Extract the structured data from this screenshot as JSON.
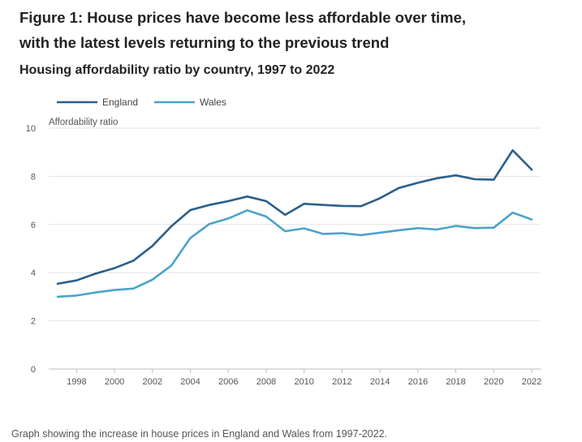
{
  "figure": {
    "title_line1": "Figure 1: House prices have become less affordable over time,",
    "title_line2": "with the latest levels returning to the previous trend",
    "caption": "Graph showing the increase in house prices in England and Wales from 1997-2022."
  },
  "colors": {
    "england": "#2a5f8a",
    "wales": "#4aa3c8",
    "grid": "#e3e3e3",
    "axis": "#bdbdbd"
  },
  "chart_data": {
    "type": "line",
    "title": "Housing affordability ratio by country, 1997 to 2022",
    "ylabel": "Affordability ratio",
    "xlabel": "",
    "x": [
      1997,
      1998,
      1999,
      2000,
      2001,
      2002,
      2003,
      2004,
      2005,
      2006,
      2007,
      2008,
      2009,
      2010,
      2011,
      2012,
      2013,
      2014,
      2015,
      2016,
      2017,
      2018,
      2019,
      2020,
      2021,
      2022
    ],
    "xlim": [
      1997,
      2022
    ],
    "ylim": [
      0,
      10
    ],
    "x_ticks": [
      "1998",
      "2000",
      "2002",
      "2004",
      "2006",
      "2008",
      "2010",
      "2012",
      "2014",
      "2016",
      "2018",
      "2020",
      "2022"
    ],
    "y_ticks": [
      "0",
      "2",
      "4",
      "6",
      "8",
      "10"
    ],
    "grid": true,
    "legend_position": "top-left",
    "series": [
      {
        "name": "England",
        "color": "#2a5f8a",
        "values": [
          3.54,
          3.68,
          3.96,
          4.19,
          4.5,
          5.11,
          5.93,
          6.6,
          6.81,
          6.97,
          7.16,
          6.97,
          6.4,
          6.86,
          6.81,
          6.77,
          6.76,
          7.09,
          7.52,
          7.73,
          7.92,
          8.04,
          7.88,
          7.86,
          9.08,
          8.28
        ]
      },
      {
        "name": "Wales",
        "color": "#4aa3c8",
        "values": [
          3.0,
          3.05,
          3.18,
          3.28,
          3.34,
          3.71,
          4.3,
          5.44,
          6.02,
          6.25,
          6.59,
          6.33,
          5.72,
          5.84,
          5.61,
          5.64,
          5.56,
          5.66,
          5.76,
          5.85,
          5.79,
          5.94,
          5.85,
          5.87,
          6.49,
          6.21
        ]
      }
    ]
  }
}
